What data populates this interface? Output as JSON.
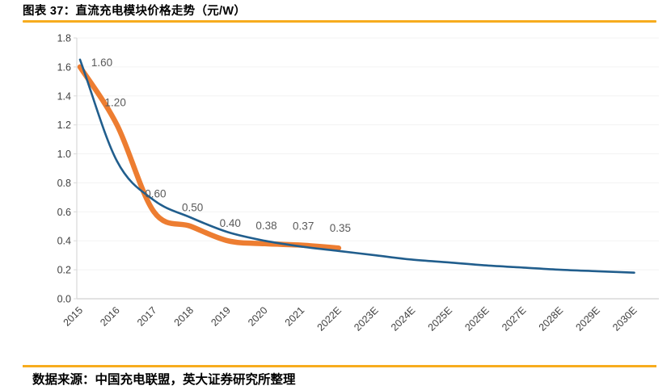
{
  "header": {
    "title": "图表 37：直流充电模块价格走势（元/W）"
  },
  "footer": {
    "source": "数据来源：中国充电联盟，英大证券研究所整理"
  },
  "colors": {
    "accent_rule": "#F7AC1E",
    "orange_series": "#ED7D31",
    "blue_series": "#215E8D",
    "grid_line": "#F3F3F3",
    "axis_line": "#D9D9D9",
    "tick_label": "#404040",
    "data_label": "#595959"
  },
  "chart_data": {
    "type": "line",
    "title": "直流充电模块价格走势（元/W）",
    "categories": [
      "2015",
      "2016",
      "2017",
      "2018",
      "2019",
      "2020",
      "2021",
      "2022E",
      "2023E",
      "2024E",
      "2025E",
      "2026E",
      "2027E",
      "2028E",
      "2029E",
      "2030E"
    ],
    "yticks": [
      "0.0",
      "0.2",
      "0.4",
      "0.6",
      "0.8",
      "1.0",
      "1.2",
      "1.4",
      "1.6",
      "1.8"
    ],
    "ylim": [
      0,
      1.8
    ],
    "ytick_step": 0.2,
    "grid": "horizontal",
    "legend": "none",
    "series": [
      {
        "name": "orange-labeled-series",
        "color_key": "orange_series",
        "smooth": true,
        "line_width": 6.5,
        "values": [
          1.6,
          1.2,
          0.6,
          0.5,
          0.4,
          0.38,
          0.37,
          0.35
        ],
        "data_labels": [
          "1.60",
          "1.20",
          "0.60",
          "0.50",
          "0.40",
          "0.38",
          "0.37",
          "0.35"
        ]
      },
      {
        "name": "blue-trend-series",
        "color_key": "blue_series",
        "smooth": true,
        "line_width": 2.6,
        "values": [
          1.65,
          0.95,
          0.68,
          0.56,
          0.46,
          0.4,
          0.36,
          0.33,
          0.3,
          0.27,
          0.25,
          0.23,
          0.215,
          0.2,
          0.19,
          0.18
        ]
      }
    ]
  }
}
